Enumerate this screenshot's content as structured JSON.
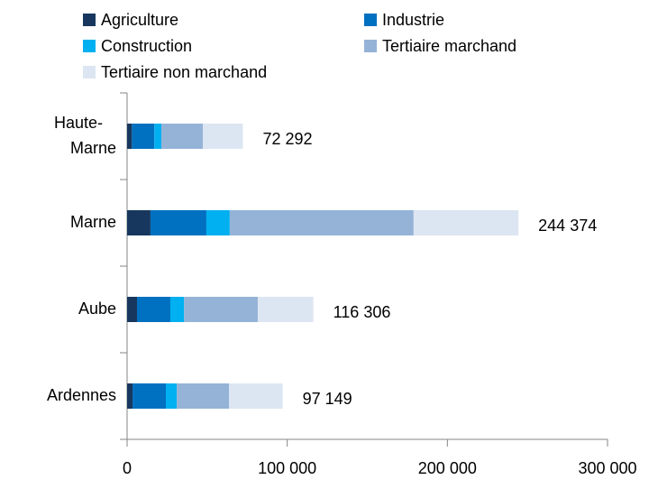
{
  "chart_data": {
    "type": "stacked-barh",
    "categories": [
      "Haute-Marne",
      "Marne",
      "Aube",
      "Ardennes"
    ],
    "series": [
      {
        "name": "Agriculture",
        "color": "#17375e",
        "values": [
          3000,
          14600,
          6200,
          3400
        ]
      },
      {
        "name": "Industrie",
        "color": "#0070c0",
        "values": [
          14000,
          34900,
          20800,
          20800
        ]
      },
      {
        "name": "Construction",
        "color": "#00b0f0",
        "values": [
          4400,
          14600,
          8500,
          6800
        ]
      },
      {
        "name": "Tertiaire marchand",
        "color": "#95b3d7",
        "values": [
          25900,
          114800,
          46100,
          32600
        ]
      },
      {
        "name": "Tertiaire non marchand",
        "color": "#dce6f2",
        "values": [
          24992,
          65474,
          34706,
          33549
        ]
      }
    ],
    "totals": [
      72292,
      244374,
      116306,
      97149
    ],
    "value_labels": [
      "72 292",
      "244 374",
      "116 306",
      "97 149"
    ],
    "xlim": [
      0,
      300000
    ],
    "xticks": [
      0,
      {
        "value": 100000,
        "label": "100 000"
      },
      {
        "value": 200000,
        "label": "200 000"
      },
      {
        "value": 300000,
        "label": "300 000"
      }
    ]
  }
}
